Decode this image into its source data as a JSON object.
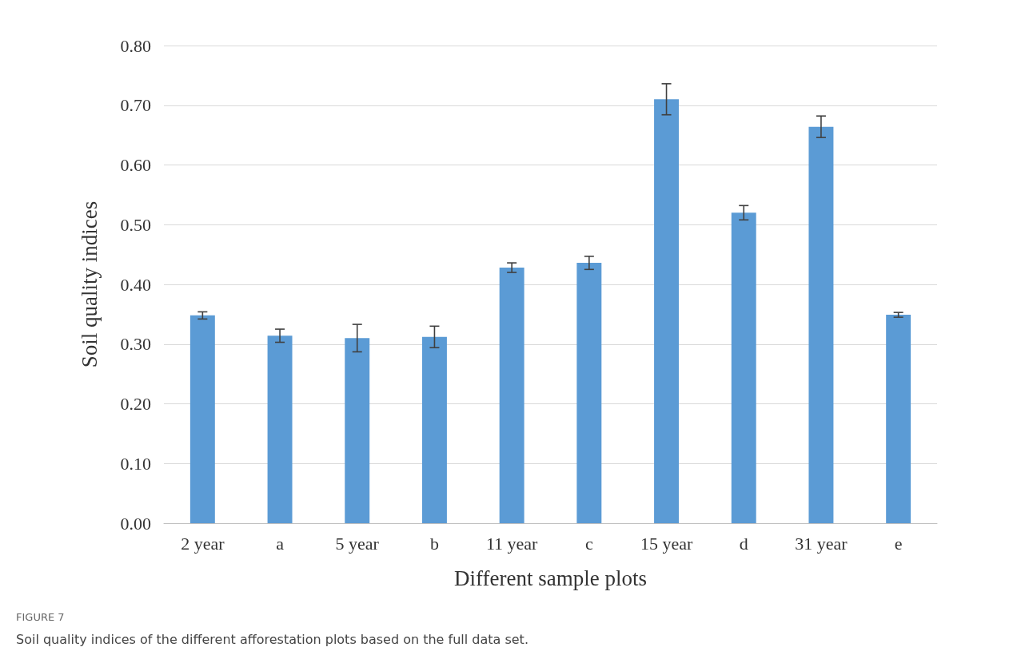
{
  "chart_data": {
    "type": "bar",
    "xlabel": "Different sample plots",
    "ylabel": "Soil quality indices",
    "categories": [
      "2 year",
      "a",
      "5 year",
      "b",
      "11 year",
      "c",
      "15 year",
      "d",
      "31 year",
      "e"
    ],
    "values": [
      0.348,
      0.314,
      0.31,
      0.312,
      0.428,
      0.436,
      0.71,
      0.52,
      0.664,
      0.349
    ],
    "errors": [
      0.006,
      0.011,
      0.023,
      0.018,
      0.008,
      0.011,
      0.026,
      0.012,
      0.018,
      0.004
    ],
    "color": "#5b9bd5",
    "ylim": [
      0,
      0.8
    ],
    "yticks": [
      {
        "value": 0,
        "label": "0.00"
      },
      {
        "value": 0.1,
        "label": "0.10"
      },
      {
        "value": 0.2,
        "label": "0.20"
      },
      {
        "value": 0.3,
        "label": "0.30"
      },
      {
        "value": 0.4,
        "label": "0.40"
      },
      {
        "value": 0.5,
        "label": "0.50"
      },
      {
        "value": 0.6,
        "label": "0.60"
      },
      {
        "value": 0.7,
        "label": "0.70"
      },
      {
        "value": 0.8,
        "label": "0.80"
      }
    ],
    "grid": "y",
    "annotations": [
      "FIGURE 7",
      "Soil quality indices of the different afforestation plots based on the full data set."
    ]
  }
}
